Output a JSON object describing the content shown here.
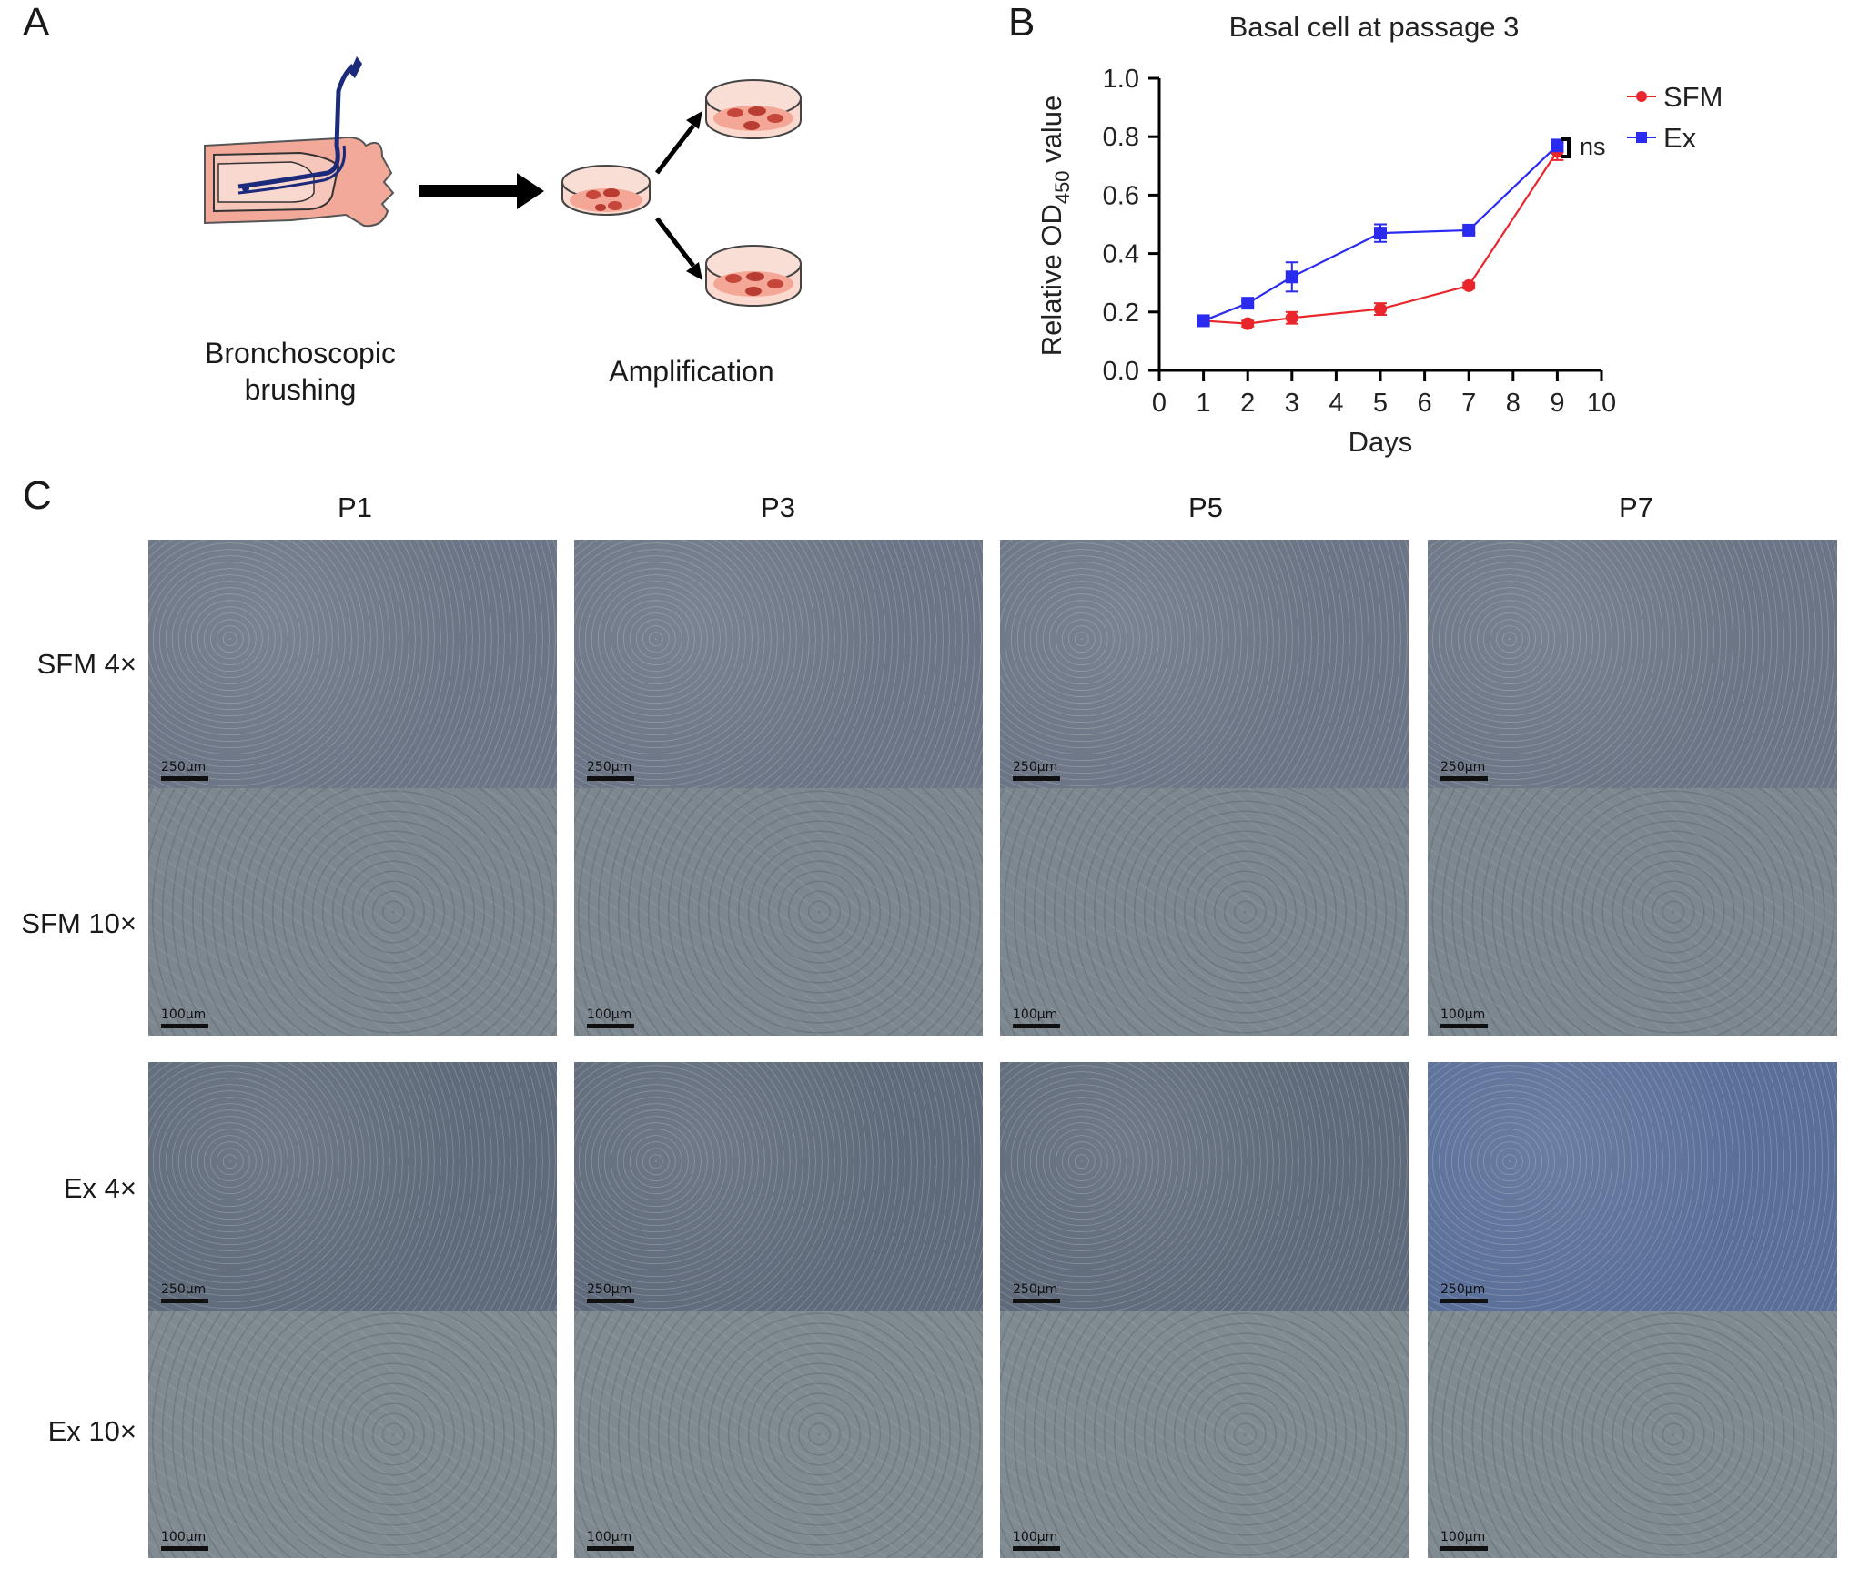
{
  "panels": {
    "a": {
      "letter": "A",
      "caption_left_line1": "Bronchoscopic",
      "caption_left_line2": "brushing",
      "caption_right": "Amplification"
    },
    "b": {
      "letter": "B"
    },
    "c": {
      "letter": "C",
      "columns": [
        "P1",
        "P3",
        "P5",
        "P7"
      ],
      "row_labels": [
        "SFM 4×",
        "SFM 10×",
        "Ex 4×",
        "Ex 10×"
      ],
      "scale_4x": "250μm",
      "scale_10x": "100μm"
    }
  },
  "chart_data": {
    "type": "line",
    "title": "Basal cell at passage 3",
    "xlabel": "Days",
    "ylabel": "Relative OD450 value",
    "ylabel_main": "Relative OD",
    "ylabel_sub": "450",
    "ylabel_tail": " value",
    "xlim": [
      0,
      10
    ],
    "ylim": [
      0.0,
      1.0
    ],
    "xticks": [
      0,
      1,
      2,
      3,
      4,
      5,
      6,
      7,
      8,
      9,
      10
    ],
    "yticks": [
      "0.0",
      "0.2",
      "0.4",
      "0.6",
      "0.8",
      "1.0"
    ],
    "legend_position": "top-right",
    "annotation": "ns",
    "series": [
      {
        "name": "SFM",
        "color": "#e8262b",
        "marker": "circle",
        "x": [
          1,
          2,
          3,
          5,
          7,
          9
        ],
        "y": [
          0.17,
          0.16,
          0.18,
          0.21,
          0.29,
          0.75
        ],
        "err": [
          0.01,
          0.01,
          0.02,
          0.02,
          0.01,
          0.03
        ]
      },
      {
        "name": "Ex",
        "color": "#2b2bf0",
        "marker": "square",
        "x": [
          1,
          2,
          3,
          5,
          7,
          9
        ],
        "y": [
          0.17,
          0.23,
          0.32,
          0.47,
          0.48,
          0.77
        ],
        "err": [
          0.01,
          0.01,
          0.05,
          0.03,
          0.01,
          0.02
        ]
      }
    ]
  },
  "colors": {
    "tissue": "#f2a99a",
    "dish_media": "#f4b8a8",
    "cells": "#c5463a",
    "micro_sfm_4x": "#6b7585",
    "micro_sfm_10x": "#7d8790",
    "micro_ex_4x": "#5f6a7a",
    "micro_ex_10x": "#808a91",
    "micro_ex_p7_4x": "#5a6f98"
  }
}
